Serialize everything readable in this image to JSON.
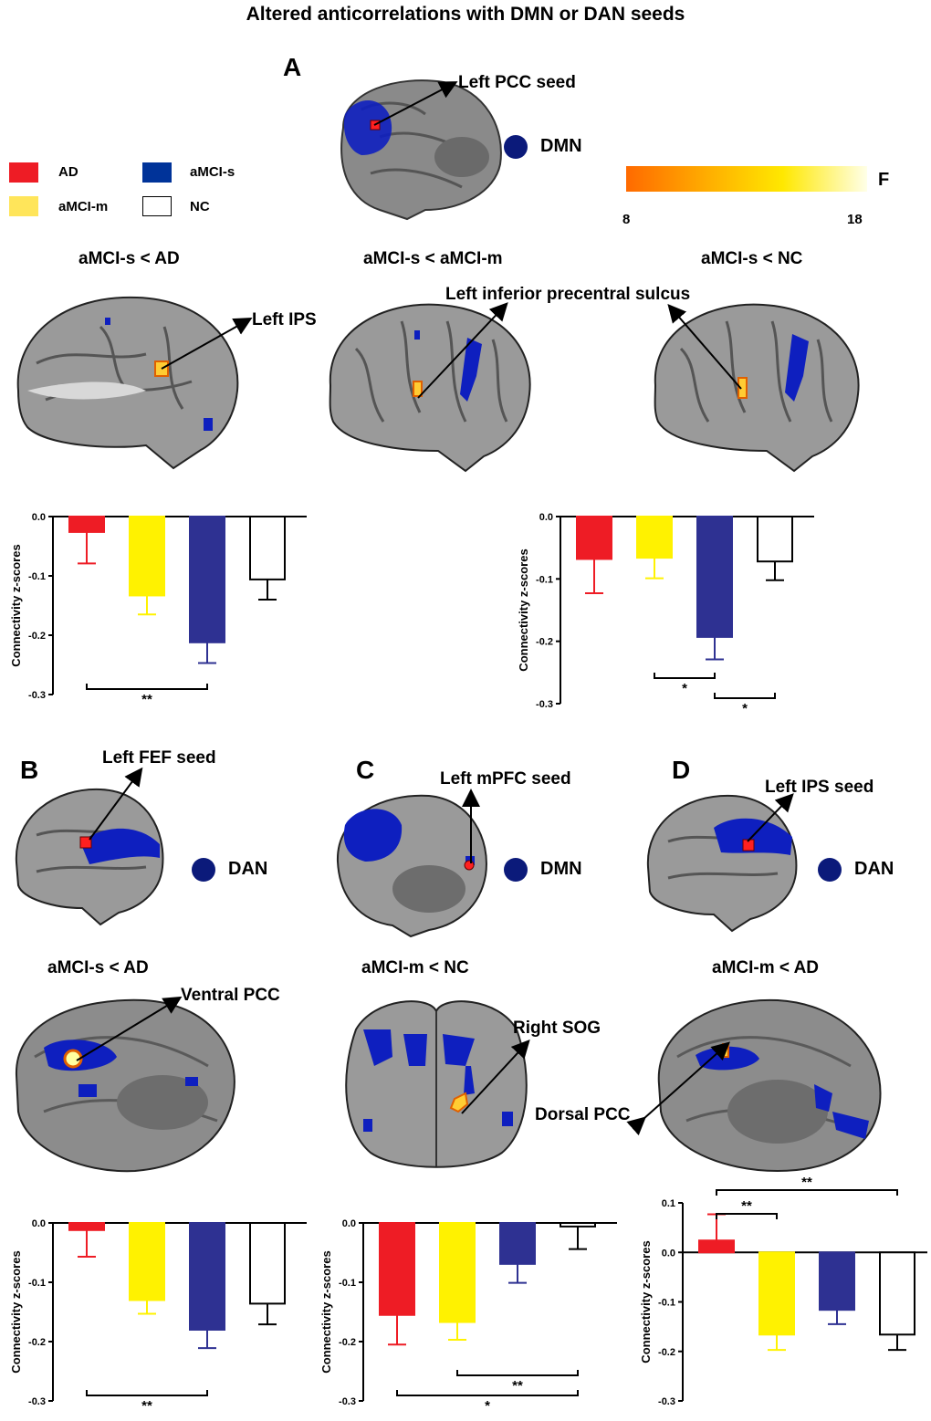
{
  "figure_title": "Altered anticorrelations with DMN or DAN seeds",
  "panels": {
    "A": "A",
    "B": "B",
    "C": "C",
    "D": "D"
  },
  "legend": {
    "groups": [
      {
        "name": "AD",
        "color": "#ee1c25"
      },
      {
        "name": "aMCI-m",
        "color": "#fff200"
      },
      {
        "name": "aMCI-s",
        "color": "#2e3192"
      },
      {
        "name": "NC",
        "color": "#ffffff"
      }
    ]
  },
  "colorbar": {
    "label": "F",
    "min": "8",
    "max": "18"
  },
  "networks": {
    "dmn": "DMN",
    "dan": "DAN"
  },
  "seed_labels": {
    "A": "Left PCC seed",
    "B": "Left FEF seed",
    "C": "Left mPFC seed",
    "D": "Left IPS seed"
  },
  "comparisons": {
    "A1": "aMCI-s < AD",
    "A2": "aMCI-s < aMCI-m",
    "A3": "aMCI-s < NC",
    "B": "aMCI-s < AD",
    "C": "aMCI-m < NC",
    "D": "aMCI-m < AD"
  },
  "region_labels": {
    "left_ips": "Left IPS",
    "left_ipcs": "Left inferior precentral sulcus",
    "ventral_pcc": "Ventral PCC",
    "right_sog": "Right SOG",
    "dorsal_pcc": "Dorsal PCC"
  },
  "chart_data": [
    {
      "type": "bar",
      "id": "A-left",
      "categories": [
        "AD",
        "aMCI-m",
        "aMCI-s",
        "NC"
      ],
      "values": [
        -0.026,
        -0.133,
        -0.212,
        -0.106
      ],
      "errors": [
        0.053,
        0.032,
        0.035,
        0.034
      ],
      "ylabel": "Connectivity z-scores",
      "ylim": [
        -0.3,
        0.0
      ],
      "yticks": [
        "0.0",
        "-0.1",
        "-0.2",
        "-0.3"
      ],
      "tick_values": [
        0.0,
        -0.1,
        -0.2,
        -0.3
      ],
      "significance": [
        {
          "from": 0,
          "to": 2,
          "label": "**"
        }
      ]
    },
    {
      "type": "bar",
      "id": "A-right",
      "categories": [
        "AD",
        "aMCI-m",
        "aMCI-s",
        "NC"
      ],
      "values": [
        -0.068,
        -0.066,
        -0.193,
        -0.072
      ],
      "errors": [
        0.055,
        0.033,
        0.036,
        0.03
      ],
      "ylabel": "Connectivity z-scores",
      "ylim": [
        -0.3,
        0.0
      ],
      "yticks": [
        "0.0",
        "-0.1",
        "-0.2",
        "-0.3"
      ],
      "tick_values": [
        0.0,
        -0.1,
        -0.2,
        -0.3
      ],
      "significance": [
        {
          "from": 1,
          "to": 2,
          "label": "*"
        },
        {
          "from": 2,
          "to": 3,
          "label": "*"
        }
      ]
    },
    {
      "type": "bar",
      "id": "B",
      "categories": [
        "AD",
        "aMCI-m",
        "aMCI-s",
        "NC"
      ],
      "values": [
        -0.012,
        -0.13,
        -0.18,
        -0.136
      ],
      "errors": [
        0.045,
        0.023,
        0.031,
        0.035
      ],
      "ylabel": "Connectivity z-scores",
      "ylim": [
        -0.3,
        0.0
      ],
      "yticks": [
        "0.0",
        "-0.1",
        "-0.2",
        "-0.3"
      ],
      "tick_values": [
        0.0,
        -0.1,
        -0.2,
        -0.3
      ],
      "significance": [
        {
          "from": 0,
          "to": 2,
          "label": "**"
        }
      ]
    },
    {
      "type": "bar",
      "id": "C",
      "categories": [
        "AD",
        "aMCI-m",
        "aMCI-s",
        "NC"
      ],
      "values": [
        -0.155,
        -0.167,
        -0.069,
        -0.006
      ],
      "errors": [
        0.05,
        0.03,
        0.032,
        0.038
      ],
      "ylabel": "Connectivity z-scores",
      "ylim": [
        -0.3,
        0.0
      ],
      "yticks": [
        "0.0",
        "-0.1",
        "-0.2",
        "-0.3"
      ],
      "tick_values": [
        0.0,
        -0.1,
        -0.2,
        -0.3
      ],
      "significance": [
        {
          "from": 1,
          "to": 3,
          "label": "**"
        },
        {
          "from": 0,
          "to": 3,
          "label": "*"
        }
      ]
    },
    {
      "type": "bar",
      "id": "D",
      "categories": [
        "AD",
        "aMCI-m",
        "aMCI-s",
        "NC"
      ],
      "values": [
        0.024,
        -0.166,
        -0.116,
        -0.166
      ],
      "errors": [
        0.053,
        0.031,
        0.029,
        0.031
      ],
      "ylabel": "Connectivity z-scores",
      "ylim": [
        -0.3,
        0.1
      ],
      "yticks": [
        "0.1",
        "0.0",
        "-0.1",
        "-0.2",
        "-0.3"
      ],
      "tick_values": [
        0.1,
        0.0,
        -0.1,
        -0.2,
        -0.3
      ],
      "significance": [
        {
          "from": 0,
          "to": 1,
          "label": "**"
        },
        {
          "from": 0,
          "to": 3,
          "label": "**"
        }
      ]
    }
  ]
}
